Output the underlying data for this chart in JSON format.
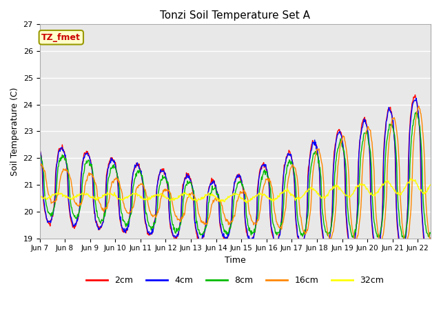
{
  "title": "Tonzi Soil Temperature Set A",
  "xlabel": "Time",
  "ylabel": "Soil Temperature (C)",
  "ylim": [
    19.0,
    27.0
  ],
  "yticks": [
    19.0,
    20.0,
    21.0,
    22.0,
    23.0,
    24.0,
    25.0,
    26.0,
    27.0
  ],
  "colors": {
    "2cm": "#ff0000",
    "4cm": "#0000ff",
    "8cm": "#00bb00",
    "16cm": "#ff8800",
    "32cm": "#ffff00"
  },
  "legend_label": "TZ_fmet",
  "plot_bg": "#e8e8e8",
  "fig_bg": "#ffffff",
  "x_labels": [
    "Jun 7",
    "Jun 8",
    "Jun 9",
    "Jun 10",
    "Jun 11",
    "Jun 12",
    "Jun 13",
    "Jun 14",
    "Jun 15",
    "Jun 16",
    "Jun 17",
    "Jun 18",
    "Jun 19",
    "Jun 20",
    "Jun 21",
    "Jun 22"
  ],
  "n_days": 15.5,
  "n_points": 744,
  "figsize": [
    6.4,
    4.8
  ],
  "dpi": 100
}
